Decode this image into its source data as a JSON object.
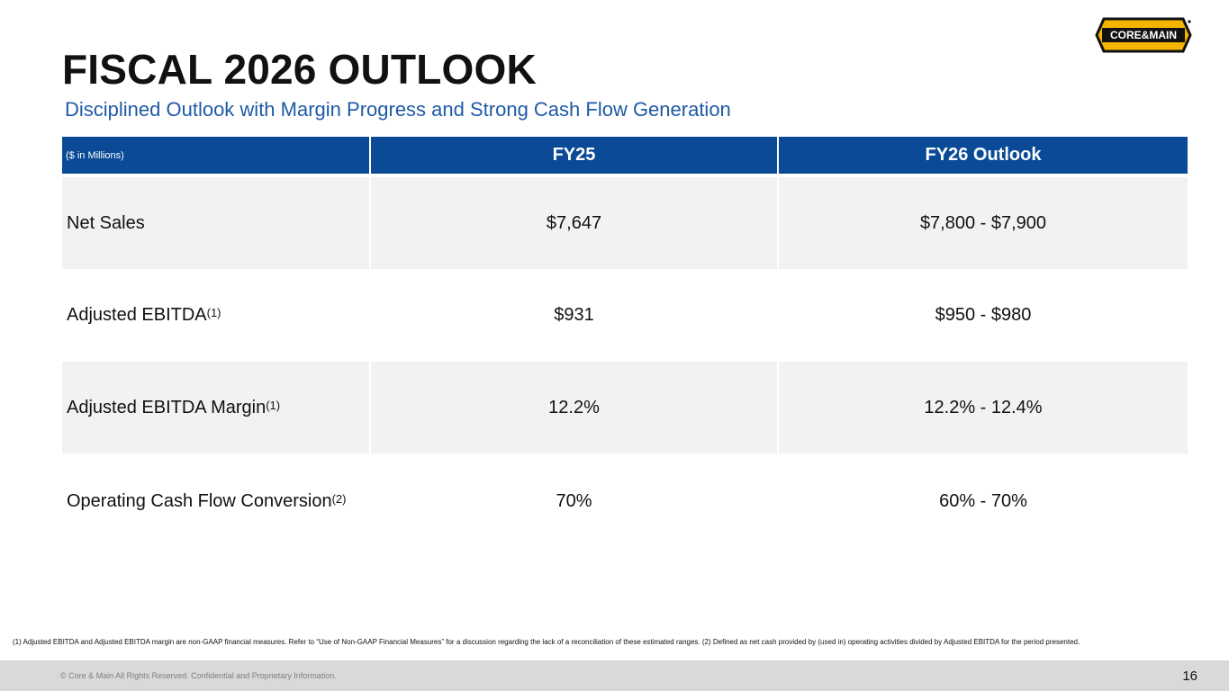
{
  "header": {
    "title": "FISCAL 2026 OUTLOOK",
    "subtitle": "Disciplined Outlook with Margin Progress and Strong Cash Flow Generation",
    "logo_text": "CORE&MAIN",
    "logo_colors": {
      "fill": "#f5b400",
      "outline": "#111111"
    }
  },
  "table": {
    "header_color": "#0a4a96",
    "columns": [
      "($ in Millions)",
      "FY25",
      "FY26 Outlook"
    ],
    "rows": [
      {
        "label": "Net Sales",
        "sup": "",
        "fy25": "$7,647",
        "fy26": "$7,800 - $7,900"
      },
      {
        "label": "Adjusted EBITDA",
        "sup": "(1)",
        "fy25": "$931",
        "fy26": "$950 - $980"
      },
      {
        "label": "Adjusted EBITDA Margin",
        "sup": "(1)",
        "fy25": "12.2%",
        "fy26": "12.2% - 12.4%"
      },
      {
        "label": "Operating Cash Flow Conversion",
        "sup": "(2)",
        "fy25": "70%",
        "fy26": "60% - 70%"
      }
    ]
  },
  "footnote": "(1) Adjusted EBITDA and Adjusted EBITDA margin are non-GAAP financial measures. Refer to “Use of Non-GAAP Financial Measures” for a discussion regarding the lack of a reconciliation of these estimated ranges. (2) Defined as net cash provided by (used in) operating activities divided by Adjusted EBITDA for the period presented.",
  "footer": {
    "copyright": "© Core & Main  All Rights Reserved. Confidential and Proprietary Information.",
    "page_number": "16"
  }
}
